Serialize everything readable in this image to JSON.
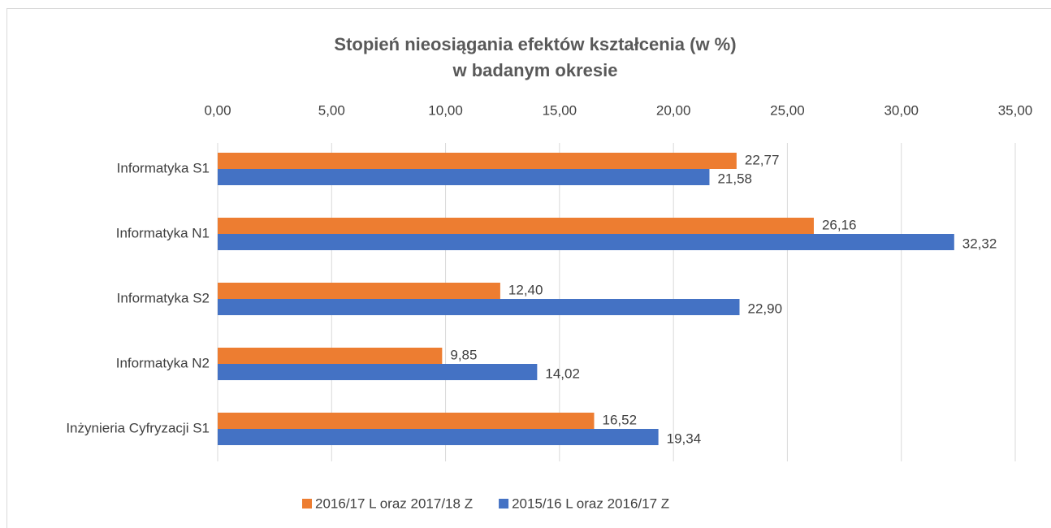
{
  "chart_data": {
    "type": "hbar",
    "title": [
      "Stopień nieosiągania efektów kształcenia (w %)",
      "w badanym okresie"
    ],
    "categories": [
      "Informatyka S1",
      "Informatyka N1",
      "Informatyka S2",
      "Informatyka N2",
      "Inżynieria Cyfryzacji S1"
    ],
    "series": [
      {
        "name": "2016/17 L oraz 2017/18 Z",
        "color": "#ed7d31",
        "values": [
          22.77,
          26.16,
          12.4,
          9.85,
          16.52
        ],
        "value_labels": [
          "22,77",
          "26,16",
          "12,40",
          "9,85",
          "16,52"
        ]
      },
      {
        "name": "2015/16 L oraz 2016/17 Z",
        "color": "#4472c4",
        "values": [
          21.58,
          32.32,
          22.9,
          14.02,
          19.34
        ],
        "value_labels": [
          "21,58",
          "32,32",
          "22,90",
          "14,02",
          "19,34"
        ]
      }
    ],
    "xlim": [
      0,
      35
    ],
    "xticks": [
      {
        "value": 0,
        "label": "0,00"
      },
      {
        "value": 5,
        "label": "5,00"
      },
      {
        "value": 10,
        "label": "10,00"
      },
      {
        "value": 15,
        "label": "15,00"
      },
      {
        "value": 20,
        "label": "20,00"
      },
      {
        "value": 25,
        "label": "25,00"
      },
      {
        "value": 30,
        "label": "30,00"
      },
      {
        "value": 35,
        "label": "35,00"
      }
    ],
    "grid": true,
    "legend": "bottom"
  }
}
